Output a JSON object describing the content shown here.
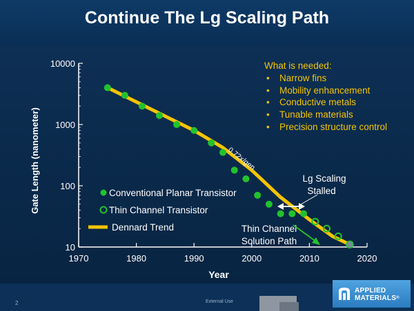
{
  "slide": {
    "title": "Continue The Lg Scaling Path",
    "slide_number": "2",
    "footer_tag": "External Use",
    "logo_line1": "APPLIED",
    "logo_line2": "MATERIALS",
    "logo_mark": "®"
  },
  "needs": {
    "heading": "What is needed:",
    "items": [
      "Narrow fins",
      "Mobility enhancement",
      "Conductive metals",
      "Tunable materials",
      "Precision structure control"
    ]
  },
  "colors": {
    "title_bg": "#0e3a66",
    "accent_yellow": "#f5c400",
    "green": "#22c22e",
    "arrow_white": "#ffffff"
  },
  "chart_data": {
    "type": "scatter",
    "xlabel": "Year",
    "ylabel": "Gate Length (nanometer)",
    "xlim": [
      1970,
      2020
    ],
    "ylim": [
      10,
      10000
    ],
    "yscale": "log",
    "x_ticks": [
      1970,
      1980,
      1990,
      2000,
      2010,
      2020
    ],
    "y_ticks": [
      10,
      100,
      1000,
      10000
    ],
    "y_tick_labels": [
      "10",
      "100",
      "1000",
      "10000"
    ],
    "legend_position": "bottom-left",
    "series": [
      {
        "name": "Conventional Planar Transistor",
        "marker": "filled-circle",
        "color": "#22c22e",
        "x": [
          1975,
          1978,
          1981,
          1984,
          1987,
          1990,
          1993,
          1995,
          1997,
          1999,
          2001,
          2003,
          2005,
          2007,
          2009
        ],
        "y": [
          4000,
          3000,
          2000,
          1400,
          1000,
          800,
          500,
          350,
          180,
          130,
          70,
          50,
          35,
          35,
          35
        ]
      },
      {
        "name": "Thin Channel Transistor",
        "marker": "open-circle",
        "color": "#22c22e",
        "x": [
          2011,
          2013,
          2015,
          2017
        ],
        "y": [
          26,
          20,
          15,
          11
        ]
      },
      {
        "name": "Dennard Trend",
        "type": "line",
        "color": "#f5c400",
        "x": [
          1975,
          1990,
          1995,
          2000,
          2005,
          2010,
          2014,
          2017
        ],
        "y": [
          4000,
          800,
          420,
          180,
          65,
          28,
          15,
          11
        ]
      }
    ],
    "annotations": {
      "slope_label": "0.72x/gen",
      "stalled_line1": "Lg Scaling",
      "stalled_line2": "Stalled",
      "solution_line1": "Thin Channel",
      "solution_line2": "Solution Path"
    }
  }
}
